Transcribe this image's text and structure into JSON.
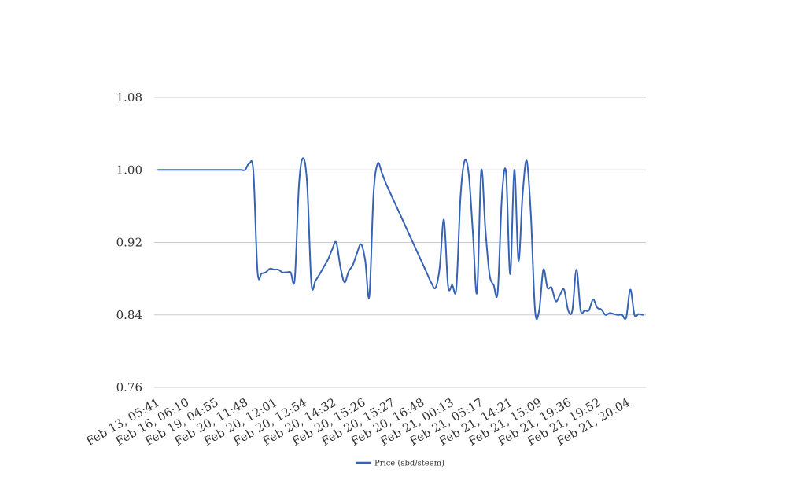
{
  "chart_data": {
    "type": "line",
    "title": "",
    "xlabel": "",
    "ylabel": "",
    "ylim": [
      0.76,
      1.08
    ],
    "y_ticks": [
      "0.76",
      "0.84",
      "0.92",
      "1.00",
      "1.08"
    ],
    "x_tick_labels": [
      "Feb 13, 05:41",
      "Feb 16, 06:10",
      "Feb 19, 04:55",
      "Feb 20, 11:48",
      "Feb 20, 12:01",
      "Feb 20, 12:54",
      "Feb 20, 14:32",
      "Feb 20, 15:26",
      "Feb 20, 15:27",
      "Feb 20, 16:48",
      "Feb 21, 00:13",
      "Feb 21, 05:17",
      "Feb 21, 14:21",
      "Feb 21, 15:09",
      "Feb 21, 19:36",
      "Feb 21, 19:52",
      "Feb 21, 20:04"
    ],
    "grid": true,
    "legend_position": "bottom",
    "series": [
      {
        "name": "Price (sbd/steem)",
        "color": "#3763b4",
        "values": [
          1.0,
          1.0,
          1.0,
          1.0,
          1.0,
          1.0,
          1.0,
          1.0,
          1.0,
          1.0,
          1.0,
          1.0,
          1.0,
          1.0,
          1.0,
          1.0,
          1.0,
          1.0,
          1.0,
          1.0,
          1.0,
          1.0,
          1.007,
          0.998,
          0.888,
          0.886,
          0.887,
          0.891,
          0.89,
          0.89,
          0.887,
          0.887,
          0.887,
          0.88,
          0.983,
          1.013,
          0.983,
          0.875,
          0.878,
          0.885,
          0.893,
          0.901,
          0.912,
          0.92,
          0.893,
          0.876,
          0.888,
          0.895,
          0.908,
          0.918,
          0.9,
          0.861,
          0.973,
          1.007,
          0.997,
          0.985,
          0.975,
          0.965,
          0.955,
          0.945,
          0.935,
          0.925,
          0.915,
          0.905,
          0.895,
          0.885,
          0.875,
          0.87,
          0.893,
          0.945,
          0.872,
          0.873,
          0.87,
          0.97,
          1.01,
          0.995,
          0.93,
          0.865,
          0.999,
          0.935,
          0.885,
          0.873,
          0.866,
          0.97,
          0.997,
          0.885,
          1.0,
          0.9,
          0.973,
          1.01,
          0.95,
          0.845,
          0.845,
          0.89,
          0.87,
          0.87,
          0.855,
          0.862,
          0.868,
          0.845,
          0.845,
          0.89,
          0.845,
          0.845,
          0.845,
          0.857,
          0.848,
          0.846,
          0.84,
          0.842,
          0.841,
          0.84,
          0.84,
          0.837,
          0.868,
          0.84,
          0.841,
          0.84
        ]
      }
    ]
  }
}
